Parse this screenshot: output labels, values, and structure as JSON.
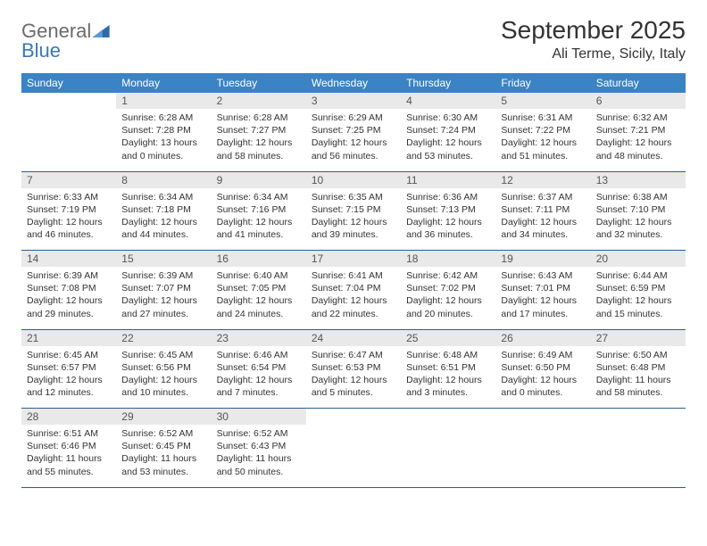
{
  "logo": {
    "text1": "General",
    "text2": "Blue",
    "triangle_color": "#2f6aa8"
  },
  "header": {
    "month_title": "September 2025",
    "location": "Ali Terme, Sicily, Italy"
  },
  "colors": {
    "header_bg": "#3a83c4",
    "header_fg": "#ffffff",
    "daynum_bg": "#e9e9e9",
    "rule": "#2f5d8a"
  },
  "weekdays": [
    "Sunday",
    "Monday",
    "Tuesday",
    "Wednesday",
    "Thursday",
    "Friday",
    "Saturday"
  ],
  "weeks": [
    {
      "nums": [
        "",
        "1",
        "2",
        "3",
        "4",
        "5",
        "6"
      ],
      "cells": [
        null,
        {
          "sr": "Sunrise: 6:28 AM",
          "ss": "Sunset: 7:28 PM",
          "dl": "Daylight: 13 hours and 0 minutes."
        },
        {
          "sr": "Sunrise: 6:28 AM",
          "ss": "Sunset: 7:27 PM",
          "dl": "Daylight: 12 hours and 58 minutes."
        },
        {
          "sr": "Sunrise: 6:29 AM",
          "ss": "Sunset: 7:25 PM",
          "dl": "Daylight: 12 hours and 56 minutes."
        },
        {
          "sr": "Sunrise: 6:30 AM",
          "ss": "Sunset: 7:24 PM",
          "dl": "Daylight: 12 hours and 53 minutes."
        },
        {
          "sr": "Sunrise: 6:31 AM",
          "ss": "Sunset: 7:22 PM",
          "dl": "Daylight: 12 hours and 51 minutes."
        },
        {
          "sr": "Sunrise: 6:32 AM",
          "ss": "Sunset: 7:21 PM",
          "dl": "Daylight: 12 hours and 48 minutes."
        }
      ]
    },
    {
      "nums": [
        "7",
        "8",
        "9",
        "10",
        "11",
        "12",
        "13"
      ],
      "cells": [
        {
          "sr": "Sunrise: 6:33 AM",
          "ss": "Sunset: 7:19 PM",
          "dl": "Daylight: 12 hours and 46 minutes."
        },
        {
          "sr": "Sunrise: 6:34 AM",
          "ss": "Sunset: 7:18 PM",
          "dl": "Daylight: 12 hours and 44 minutes."
        },
        {
          "sr": "Sunrise: 6:34 AM",
          "ss": "Sunset: 7:16 PM",
          "dl": "Daylight: 12 hours and 41 minutes."
        },
        {
          "sr": "Sunrise: 6:35 AM",
          "ss": "Sunset: 7:15 PM",
          "dl": "Daylight: 12 hours and 39 minutes."
        },
        {
          "sr": "Sunrise: 6:36 AM",
          "ss": "Sunset: 7:13 PM",
          "dl": "Daylight: 12 hours and 36 minutes."
        },
        {
          "sr": "Sunrise: 6:37 AM",
          "ss": "Sunset: 7:11 PM",
          "dl": "Daylight: 12 hours and 34 minutes."
        },
        {
          "sr": "Sunrise: 6:38 AM",
          "ss": "Sunset: 7:10 PM",
          "dl": "Daylight: 12 hours and 32 minutes."
        }
      ]
    },
    {
      "nums": [
        "14",
        "15",
        "16",
        "17",
        "18",
        "19",
        "20"
      ],
      "cells": [
        {
          "sr": "Sunrise: 6:39 AM",
          "ss": "Sunset: 7:08 PM",
          "dl": "Daylight: 12 hours and 29 minutes."
        },
        {
          "sr": "Sunrise: 6:39 AM",
          "ss": "Sunset: 7:07 PM",
          "dl": "Daylight: 12 hours and 27 minutes."
        },
        {
          "sr": "Sunrise: 6:40 AM",
          "ss": "Sunset: 7:05 PM",
          "dl": "Daylight: 12 hours and 24 minutes."
        },
        {
          "sr": "Sunrise: 6:41 AM",
          "ss": "Sunset: 7:04 PM",
          "dl": "Daylight: 12 hours and 22 minutes."
        },
        {
          "sr": "Sunrise: 6:42 AM",
          "ss": "Sunset: 7:02 PM",
          "dl": "Daylight: 12 hours and 20 minutes."
        },
        {
          "sr": "Sunrise: 6:43 AM",
          "ss": "Sunset: 7:01 PM",
          "dl": "Daylight: 12 hours and 17 minutes."
        },
        {
          "sr": "Sunrise: 6:44 AM",
          "ss": "Sunset: 6:59 PM",
          "dl": "Daylight: 12 hours and 15 minutes."
        }
      ]
    },
    {
      "nums": [
        "21",
        "22",
        "23",
        "24",
        "25",
        "26",
        "27"
      ],
      "cells": [
        {
          "sr": "Sunrise: 6:45 AM",
          "ss": "Sunset: 6:57 PM",
          "dl": "Daylight: 12 hours and 12 minutes."
        },
        {
          "sr": "Sunrise: 6:45 AM",
          "ss": "Sunset: 6:56 PM",
          "dl": "Daylight: 12 hours and 10 minutes."
        },
        {
          "sr": "Sunrise: 6:46 AM",
          "ss": "Sunset: 6:54 PM",
          "dl": "Daylight: 12 hours and 7 minutes."
        },
        {
          "sr": "Sunrise: 6:47 AM",
          "ss": "Sunset: 6:53 PM",
          "dl": "Daylight: 12 hours and 5 minutes."
        },
        {
          "sr": "Sunrise: 6:48 AM",
          "ss": "Sunset: 6:51 PM",
          "dl": "Daylight: 12 hours and 3 minutes."
        },
        {
          "sr": "Sunrise: 6:49 AM",
          "ss": "Sunset: 6:50 PM",
          "dl": "Daylight: 12 hours and 0 minutes."
        },
        {
          "sr": "Sunrise: 6:50 AM",
          "ss": "Sunset: 6:48 PM",
          "dl": "Daylight: 11 hours and 58 minutes."
        }
      ]
    },
    {
      "nums": [
        "28",
        "29",
        "30",
        "",
        "",
        "",
        ""
      ],
      "cells": [
        {
          "sr": "Sunrise: 6:51 AM",
          "ss": "Sunset: 6:46 PM",
          "dl": "Daylight: 11 hours and 55 minutes."
        },
        {
          "sr": "Sunrise: 6:52 AM",
          "ss": "Sunset: 6:45 PM",
          "dl": "Daylight: 11 hours and 53 minutes."
        },
        {
          "sr": "Sunrise: 6:52 AM",
          "ss": "Sunset: 6:43 PM",
          "dl": "Daylight: 11 hours and 50 minutes."
        },
        null,
        null,
        null,
        null
      ]
    }
  ]
}
